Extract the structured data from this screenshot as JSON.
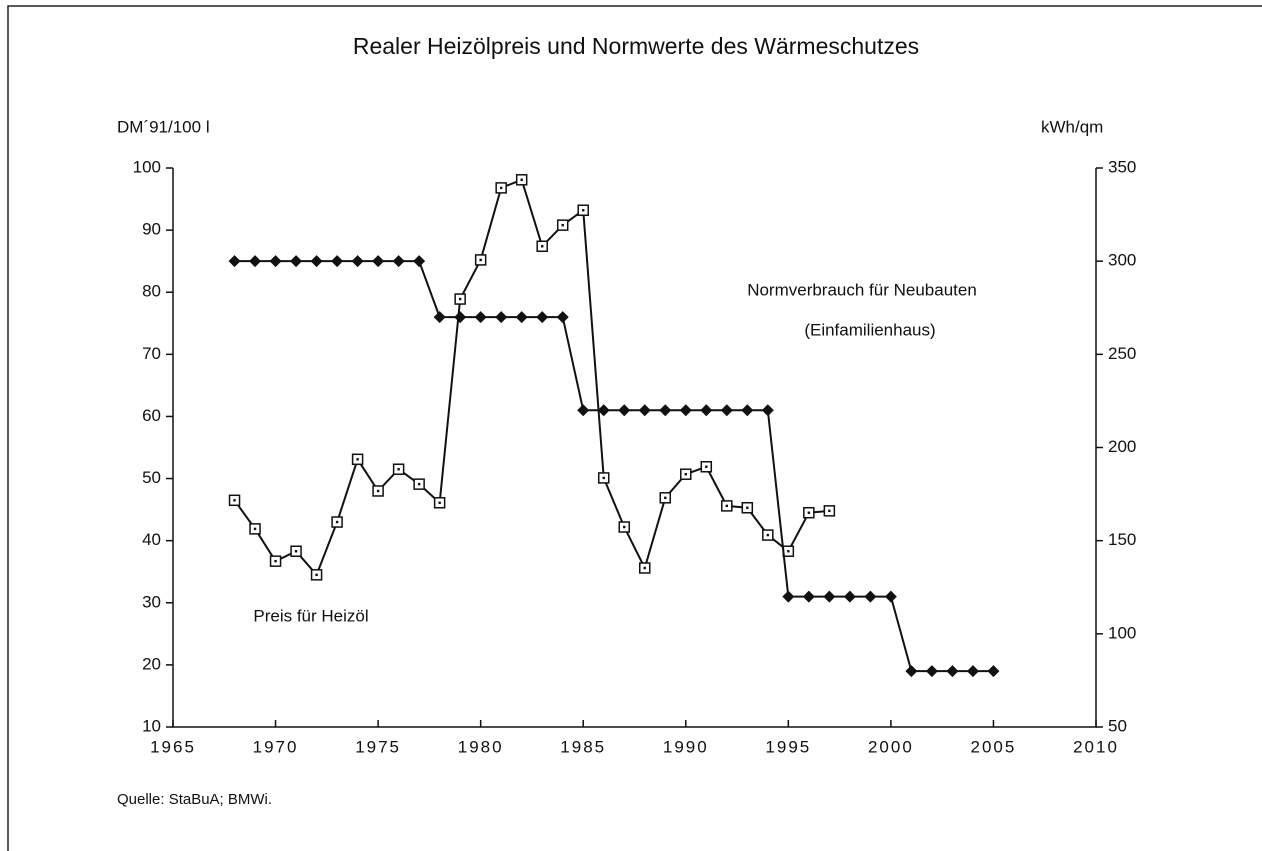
{
  "chart_data": {
    "type": "line",
    "title": "Realer Heizölpreis und Normwerte des Wärmeschutzes",
    "y_label": "DM´91/100 l",
    "y2_label": "kWh/qm",
    "source": "Quelle: StaBuA; BMWi.",
    "annotations": [
      "Normverbrauch für Neubauten",
      "(Einfamilienhaus)",
      "Preis für Heizöl"
    ],
    "xlim": [
      1965,
      2010
    ],
    "xticks": [
      1965,
      1970,
      1975,
      1980,
      1985,
      1990,
      1995,
      2000,
      2005,
      2010
    ],
    "ylim": [
      10,
      100
    ],
    "yticks": [
      10,
      20,
      30,
      40,
      50,
      60,
      70,
      80,
      90,
      100
    ],
    "y2lim": [
      50,
      350
    ],
    "y2ticks": [
      50,
      100,
      150,
      200,
      250,
      300,
      350
    ],
    "series": [
      {
        "color": "#111111",
        "marker": "square",
        "axis": "y",
        "x": [
          1968,
          1969,
          1970,
          1971,
          1972,
          1973,
          1974,
          1975,
          1976,
          1977,
          1978,
          1979,
          1980,
          1981,
          1982,
          1983,
          1984,
          1985,
          1986,
          1987,
          1988,
          1989,
          1990,
          1991,
          1992,
          1993,
          1994,
          1995,
          1996,
          1997
        ],
        "values": [
          46.5,
          41.9,
          36.7,
          38.3,
          34.5,
          43,
          53.1,
          48,
          51.5,
          49.1,
          46.1,
          78.9,
          85.2,
          96.8,
          98.1,
          87.4,
          90.8,
          93.2,
          50.1,
          42.2,
          35.6,
          46.9,
          50.7,
          51.9,
          45.6,
          45.3,
          40.9,
          38.3,
          44.5,
          44.8
        ]
      },
      {
        "color": "#111111",
        "marker": "diamond",
        "axis": "y2",
        "x": [
          1968,
          1969,
          1970,
          1971,
          1972,
          1973,
          1974,
          1975,
          1976,
          1977,
          1978,
          1979,
          1980,
          1981,
          1982,
          1983,
          1984,
          1985,
          1986,
          1987,
          1988,
          1989,
          1990,
          1991,
          1992,
          1993,
          1994,
          1995,
          1996,
          1997,
          1998,
          1999,
          2000,
          2001,
          2002,
          2003,
          2004,
          2005
        ],
        "values": [
          300,
          300,
          300,
          300,
          300,
          300,
          300,
          300,
          300,
          300,
          270,
          270,
          270,
          270,
          270,
          270,
          270,
          220,
          220,
          220,
          220,
          220,
          220,
          220,
          220,
          220,
          220,
          120,
          120,
          120,
          120,
          120,
          120,
          80,
          80,
          80,
          80,
          80
        ]
      }
    ]
  }
}
